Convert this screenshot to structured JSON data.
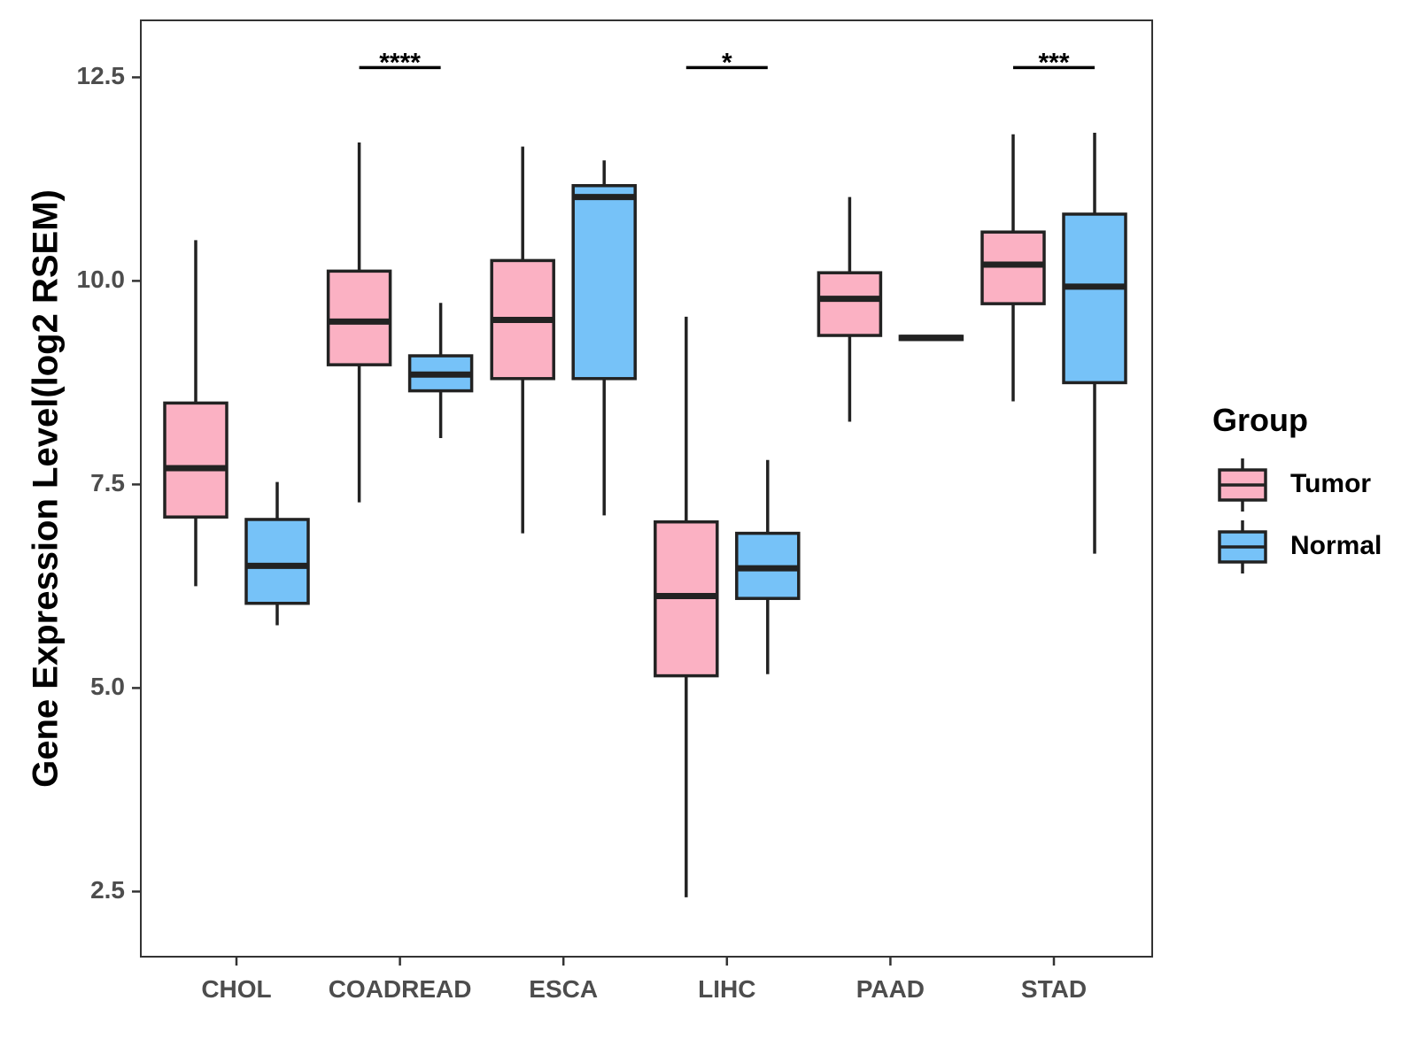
{
  "chart_data": {
    "type": "boxplot",
    "title": "",
    "xlabel": "",
    "ylabel": "Gene Expression Level(log2 RSEM)",
    "ylim": [
      1.7,
      13.2
    ],
    "yticks": [
      "2.5",
      "5.0",
      "7.5",
      "10.0",
      "12.5"
    ],
    "categories": [
      "CHOL",
      "COADREAD",
      "ESCA",
      "LIHC",
      "PAAD",
      "STAD"
    ],
    "legend": {
      "title": "Group",
      "position": "right"
    },
    "series": [
      {
        "name": "Tumor",
        "color": "#fbb1c3",
        "boxes": [
          {
            "min": 6.25,
            "q1": 7.1,
            "median": 7.7,
            "q3": 8.5,
            "max": 10.5
          },
          {
            "min": 7.28,
            "q1": 8.97,
            "median": 9.5,
            "q3": 10.12,
            "max": 11.7
          },
          {
            "min": 6.9,
            "q1": 8.8,
            "median": 9.52,
            "q3": 10.25,
            "max": 11.65
          },
          {
            "min": 2.43,
            "q1": 5.15,
            "median": 6.13,
            "q3": 7.04,
            "max": 9.56
          },
          {
            "min": 8.27,
            "q1": 9.33,
            "median": 9.78,
            "q3": 10.1,
            "max": 11.03
          },
          {
            "min": 8.52,
            "q1": 9.72,
            "median": 10.2,
            "q3": 10.6,
            "max": 11.8
          }
        ]
      },
      {
        "name": "Normal",
        "color": "#76c2f8",
        "boxes": [
          {
            "min": 5.77,
            "q1": 6.04,
            "median": 6.5,
            "q3": 7.07,
            "max": 7.53
          },
          {
            "min": 8.07,
            "q1": 8.65,
            "median": 8.85,
            "q3": 9.08,
            "max": 9.73
          },
          {
            "min": 7.12,
            "q1": 8.8,
            "median": 11.03,
            "q3": 11.17,
            "max": 11.48
          },
          {
            "min": 5.17,
            "q1": 6.1,
            "median": 6.47,
            "q3": 6.9,
            "max": 7.8
          },
          {
            "min": 9.28,
            "q1": 9.28,
            "median": 9.3,
            "q3": 9.32,
            "max": 9.32
          },
          {
            "min": 6.65,
            "q1": 8.75,
            "median": 9.93,
            "q3": 10.82,
            "max": 11.82
          }
        ]
      }
    ],
    "annotations": [
      {
        "category": "COADREAD",
        "label": "****",
        "y": 12.62
      },
      {
        "category": "LIHC",
        "label": "*",
        "y": 12.62
      },
      {
        "category": "STAD",
        "label": "***",
        "y": 12.62
      }
    ]
  }
}
